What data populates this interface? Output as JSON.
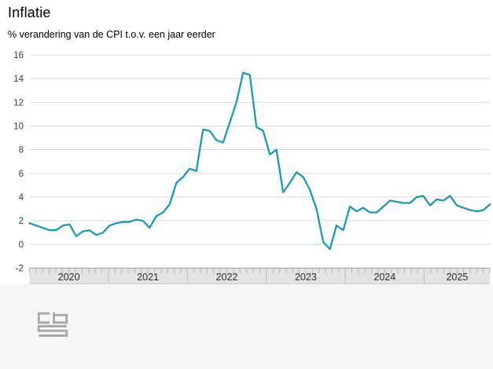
{
  "header": {
    "title": "Inflatie",
    "subtitle": "% verandering van de CPI t.o.v. een jaar eerder"
  },
  "chart_data": {
    "type": "line",
    "title": "Inflatie",
    "ylabel": "% verandering van de CPI t.o.v. een jaar eerder",
    "x_frequency": "monthly",
    "x_start": "2020-01",
    "x_end": "2025-10",
    "x_year_labels": [
      "2020",
      "2021",
      "2022",
      "2023",
      "2024",
      "2025"
    ],
    "y_tick_labels": [
      16,
      14,
      12,
      10,
      8,
      6,
      4,
      2,
      0,
      -2
    ],
    "ylim": [
      -2,
      16
    ],
    "grid": "horizontal",
    "legend": "none",
    "line_color": "#1b9ab2",
    "series": [
      {
        "name": "Inflatie (CPI, % verandering t.o.v. een jaar eerder)",
        "values": [
          1.8,
          1.6,
          1.4,
          1.2,
          1.2,
          1.6,
          1.7,
          0.7,
          1.1,
          1.2,
          0.8,
          1.0,
          1.6,
          1.8,
          1.9,
          1.9,
          2.1,
          2.0,
          1.4,
          2.4,
          2.7,
          3.4,
          5.2,
          5.7,
          6.4,
          6.2,
          9.7,
          9.6,
          8.8,
          8.6,
          10.3,
          12.0,
          14.5,
          14.3,
          9.9,
          9.6,
          7.6,
          8.0,
          4.4,
          5.2,
          6.1,
          5.7,
          4.6,
          3.0,
          0.2,
          -0.4,
          1.6,
          1.2,
          3.2,
          2.8,
          3.1,
          2.7,
          2.7,
          3.2,
          3.7,
          3.6,
          3.5,
          3.5,
          4.0,
          4.1,
          3.3,
          3.8,
          3.7,
          4.1,
          3.3,
          3.1,
          2.9,
          2.8,
          2.9,
          3.4
        ]
      }
    ]
  },
  "footer": {
    "logo": "cbs-logo"
  }
}
